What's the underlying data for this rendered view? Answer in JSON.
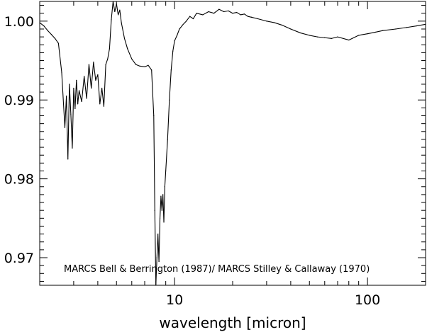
{
  "chart_data": {
    "type": "line",
    "title": "",
    "xlabel": "wavelength [micron]",
    "ylabel": "",
    "xscale": "log",
    "xlim": [
      2,
      200
    ],
    "ylim": [
      0.9665,
      1.0025
    ],
    "grid": false,
    "legend": "none",
    "annotation": "MARCS Bell & Berrington (1987)/ MARCS Stilley & Callaway (1970)",
    "x_tick_labels": [
      "10",
      "100"
    ],
    "y_tick_labels": [
      "0.97",
      "0.98",
      "0.99",
      "1.00"
    ],
    "series": [
      {
        "name": "",
        "color": "#000000",
        "x": [
          2.0,
          2.1,
          2.2,
          2.3,
          2.4,
          2.5,
          2.6,
          2.7,
          2.75,
          2.8,
          2.85,
          2.9,
          2.95,
          3.0,
          3.05,
          3.1,
          3.15,
          3.2,
          3.3,
          3.4,
          3.5,
          3.6,
          3.7,
          3.8,
          3.9,
          4.0,
          4.1,
          4.2,
          4.3,
          4.4,
          4.5,
          4.6,
          4.7,
          4.8,
          4.9,
          5.0,
          5.1,
          5.2,
          5.3,
          5.5,
          5.7,
          6.0,
          6.3,
          6.6,
          7.0,
          7.3,
          7.6,
          7.8,
          7.9,
          8.0,
          8.1,
          8.2,
          8.3,
          8.4,
          8.5,
          8.6,
          8.7,
          8.8,
          8.9,
          9.0,
          9.2,
          9.4,
          9.6,
          9.8,
          10.0,
          10.3,
          10.6,
          11.0,
          11.5,
          12.0,
          12.5,
          13.0,
          14.0,
          15.0,
          16.0,
          17.0,
          18.0,
          19.0,
          20.0,
          21.0,
          22.0,
          23.0,
          24.0,
          25.0,
          27.0,
          30.0,
          33.0,
          36.0,
          40.0,
          45.0,
          50.0,
          55.0,
          60.0,
          65.0,
          70.0,
          80.0,
          90.0,
          100.0,
          110.0,
          120.0,
          140.0,
          160.0,
          180.0,
          200.0
        ],
        "y": [
          0.9998,
          0.9994,
          0.9988,
          0.9983,
          0.9978,
          0.9972,
          0.9935,
          0.9865,
          0.9905,
          0.9825,
          0.992,
          0.9882,
          0.9839,
          0.9915,
          0.9889,
          0.9925,
          0.9895,
          0.9912,
          0.9898,
          0.993,
          0.9902,
          0.9945,
          0.9915,
          0.9948,
          0.9925,
          0.9932,
          0.9895,
          0.9915,
          0.9892,
          0.9945,
          0.9952,
          0.9965,
          1.0002,
          1.0025,
          1.0012,
          1.0022,
          1.0008,
          1.0014,
          0.9998,
          0.9978,
          0.9965,
          0.9952,
          0.9945,
          0.9943,
          0.9942,
          0.9944,
          0.9938,
          0.988,
          0.976,
          0.9665,
          0.97,
          0.973,
          0.9695,
          0.975,
          0.9778,
          0.976,
          0.978,
          0.9745,
          0.979,
          0.981,
          0.985,
          0.99,
          0.9938,
          0.9962,
          0.9975,
          0.9982,
          0.999,
          0.9995,
          1.0,
          1.0006,
          1.0003,
          1.001,
          1.0008,
          1.0012,
          1.001,
          1.0015,
          1.0012,
          1.0013,
          1.001,
          1.0011,
          1.0008,
          1.0009,
          1.0006,
          1.0005,
          1.0003,
          1.0,
          0.9998,
          0.9995,
          0.999,
          0.9985,
          0.9982,
          0.998,
          0.9979,
          0.9978,
          0.998,
          0.9976,
          0.9982,
          0.9984,
          0.9986,
          0.9988,
          0.999,
          0.9992,
          0.9994,
          0.9996
        ]
      }
    ]
  }
}
